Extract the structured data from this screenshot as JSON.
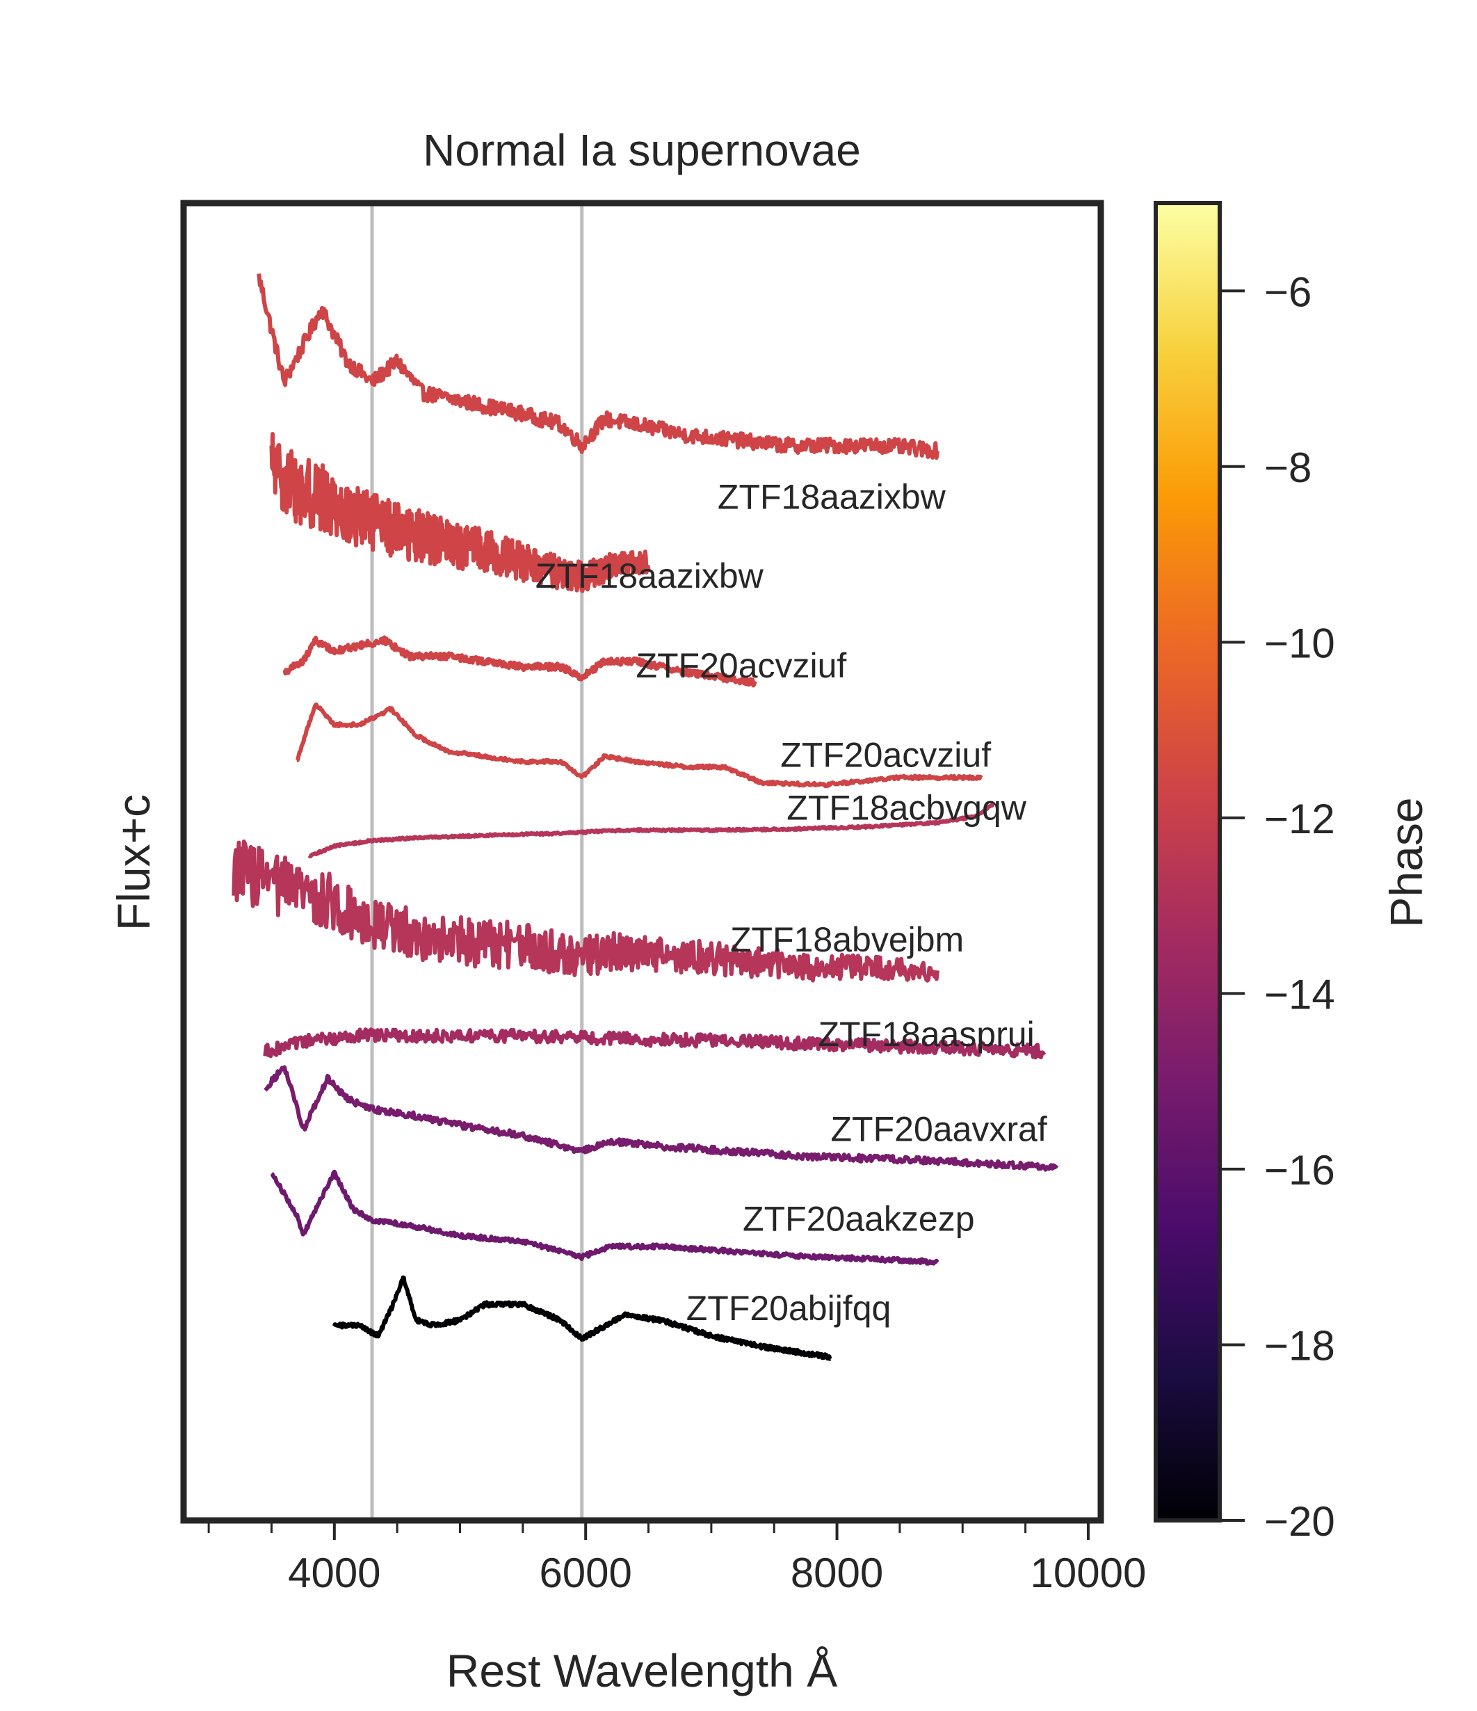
{
  "chart_data": {
    "type": "line",
    "title": "Normal Ia supernovae",
    "xlabel": "Rest Wavelength Å",
    "ylabel": "Flux+c",
    "xlim": [
      2800,
      10100
    ],
    "ylim": [
      -1.0,
      11.5
    ],
    "x_ticks": [
      {
        "value": 4000,
        "label": "4000"
      },
      {
        "value": 6000,
        "label": "6000"
      },
      {
        "value": 8000,
        "label": "8000"
      },
      {
        "value": 10000,
        "label": "10000"
      }
    ],
    "x_minor_ticks": [
      3000,
      3500,
      4500,
      5000,
      5500,
      6500,
      7000,
      7500,
      8500,
      9000,
      9500
    ],
    "vertical_lines": [
      4300,
      5970
    ],
    "grid": false,
    "y_ticks_shown": false,
    "colorbar": {
      "label": "Phase",
      "colormap": "inferno",
      "range": [
        -20,
        -5
      ],
      "ticks": [
        {
          "value": -6,
          "label": "−6"
        },
        {
          "value": -8,
          "label": "−8"
        },
        {
          "value": -10,
          "label": "−10"
        },
        {
          "value": -12,
          "label": "−12"
        },
        {
          "value": -14,
          "label": "−14"
        },
        {
          "value": -16,
          "label": "−16"
        },
        {
          "value": -18,
          "label": "−18"
        },
        {
          "value": -20,
          "label": "−20"
        }
      ],
      "stops": [
        "#000004",
        "#1b0c41",
        "#4a0c6b",
        "#781c6d",
        "#a52c60",
        "#cf4446",
        "#ed6925",
        "#fb9b06",
        "#f7d13d",
        "#fcffa4"
      ]
    },
    "series": [
      {
        "name": "ZTF18aazixbw",
        "color": "#cf4446",
        "offset": 9.6,
        "range": [
          3400,
          8800
        ],
        "noise": 0.07,
        "amplitude": 1.0,
        "label": "ZTF18aazixbw",
        "label_x": 7050,
        "label_y": 8.6,
        "points": [
          [
            3400,
            10.8
          ],
          [
            3600,
            9.8
          ],
          [
            3900,
            10.5
          ],
          [
            4100,
            10.0
          ],
          [
            4300,
            9.8
          ],
          [
            4500,
            10.0
          ],
          [
            4700,
            9.7
          ],
          [
            4900,
            9.65
          ],
          [
            5100,
            9.6
          ],
          [
            5300,
            9.55
          ],
          [
            5500,
            9.5
          ],
          [
            5800,
            9.4
          ],
          [
            5970,
            9.2
          ],
          [
            6150,
            9.45
          ],
          [
            6400,
            9.4
          ],
          [
            6800,
            9.3
          ],
          [
            7200,
            9.25
          ],
          [
            7600,
            9.2
          ],
          [
            8000,
            9.2
          ],
          [
            8400,
            9.2
          ],
          [
            8800,
            9.15
          ]
        ]
      },
      {
        "name": "ZTF18aazixbw",
        "color": "#cf4446",
        "offset": 8.2,
        "range": [
          3500,
          6500
        ],
        "noise": 0.25,
        "amplitude": 1.0,
        "label": "ZTF18aazixbw",
        "label_x": 5600,
        "label_y": 7.85,
        "points": [
          [
            3500,
            9.0
          ],
          [
            3700,
            8.8
          ],
          [
            3900,
            8.7
          ],
          [
            4200,
            8.5
          ],
          [
            4500,
            8.4
          ],
          [
            4800,
            8.3
          ],
          [
            5200,
            8.2
          ],
          [
            5600,
            8.05
          ],
          [
            5970,
            7.95
          ],
          [
            6200,
            8.05
          ],
          [
            6500,
            8.1
          ]
        ]
      },
      {
        "name": "ZTF20acvziuf",
        "color": "#cf4446",
        "offset": 7.1,
        "range": [
          3600,
          7350
        ],
        "noise": 0.03,
        "amplitude": 1.0,
        "label": "ZTF20acvziuf",
        "label_x": 6400,
        "label_y": 7.0,
        "points": [
          [
            3600,
            7.05
          ],
          [
            3750,
            7.15
          ],
          [
            3850,
            7.35
          ],
          [
            4000,
            7.25
          ],
          [
            4200,
            7.3
          ],
          [
            4400,
            7.35
          ],
          [
            4600,
            7.2
          ],
          [
            4900,
            7.2
          ],
          [
            5200,
            7.15
          ],
          [
            5500,
            7.1
          ],
          [
            5800,
            7.1
          ],
          [
            5970,
            7.0
          ],
          [
            6150,
            7.15
          ],
          [
            6400,
            7.15
          ],
          [
            6800,
            7.05
          ],
          [
            7350,
            6.95
          ]
        ]
      },
      {
        "name": "ZTF20acvziuf",
        "color": "#cf4446",
        "offset": 6.1,
        "range": [
          3700,
          9150
        ],
        "noise": 0.015,
        "amplitude": 1.0,
        "label": "ZTF20acvziuf",
        "label_x": 7550,
        "label_y": 6.15,
        "points": [
          [
            3700,
            6.2
          ],
          [
            3850,
            6.75
          ],
          [
            4000,
            6.55
          ],
          [
            4200,
            6.55
          ],
          [
            4450,
            6.7
          ],
          [
            4650,
            6.45
          ],
          [
            4900,
            6.3
          ],
          [
            5200,
            6.25
          ],
          [
            5500,
            6.2
          ],
          [
            5800,
            6.2
          ],
          [
            5970,
            6.05
          ],
          [
            6150,
            6.25
          ],
          [
            6400,
            6.2
          ],
          [
            6800,
            6.15
          ],
          [
            7100,
            6.15
          ],
          [
            7400,
            6.0
          ],
          [
            7900,
            5.98
          ],
          [
            8500,
            6.05
          ],
          [
            9150,
            6.05
          ]
        ]
      },
      {
        "name": "ZTF18acbvgqw",
        "color": "#b6365a",
        "offset": 5.55,
        "range": [
          3800,
          9250
        ],
        "noise": 0.01,
        "amplitude": 1.0,
        "label": "ZTF18acbvgqw",
        "label_x": 7600,
        "label_y": 5.65,
        "points": [
          [
            3800,
            5.3
          ],
          [
            4000,
            5.4
          ],
          [
            4300,
            5.45
          ],
          [
            4700,
            5.48
          ],
          [
            5200,
            5.5
          ],
          [
            5800,
            5.52
          ],
          [
            6300,
            5.55
          ],
          [
            7000,
            5.55
          ],
          [
            7600,
            5.56
          ],
          [
            8200,
            5.58
          ],
          [
            8800,
            5.62
          ],
          [
            9100,
            5.68
          ],
          [
            9250,
            5.8
          ]
        ]
      },
      {
        "name": "ZTF18abvejbm",
        "color": "#b6365a",
        "offset": 4.4,
        "range": [
          3200,
          8800
        ],
        "noise": 0.22,
        "amplitude": 1.0,
        "label": "ZTF18abvejbm",
        "label_x": 7150,
        "label_y": 4.4,
        "points": [
          [
            3200,
            5.2
          ],
          [
            3600,
            5.0
          ],
          [
            4000,
            4.85
          ],
          [
            4500,
            4.6
          ],
          [
            5000,
            4.5
          ],
          [
            5500,
            4.45
          ],
          [
            5970,
            4.35
          ],
          [
            6300,
            4.4
          ],
          [
            6800,
            4.35
          ],
          [
            7300,
            4.3
          ],
          [
            7800,
            4.25
          ],
          [
            8300,
            4.25
          ],
          [
            8800,
            4.2
          ]
        ]
      },
      {
        "name": "ZTF18aasprui",
        "color": "#a52c60",
        "offset": 3.55,
        "range": [
          3450,
          9650
        ],
        "noise": 0.06,
        "amplitude": 1.0,
        "label": "ZTF18aasprui",
        "label_x": 7850,
        "label_y": 3.5,
        "points": [
          [
            3450,
            3.45
          ],
          [
            3800,
            3.55
          ],
          [
            4200,
            3.6
          ],
          [
            4800,
            3.6
          ],
          [
            5400,
            3.6
          ],
          [
            6000,
            3.58
          ],
          [
            6600,
            3.56
          ],
          [
            7200,
            3.55
          ],
          [
            7800,
            3.52
          ],
          [
            8400,
            3.5
          ],
          [
            9000,
            3.48
          ],
          [
            9650,
            3.45
          ]
        ]
      },
      {
        "name": "ZTF20aavxraf",
        "color": "#781c6d",
        "offset": 2.35,
        "range": [
          3450,
          9750
        ],
        "noise": 0.03,
        "amplitude": 1.0,
        "label": "ZTF20aavxraf",
        "label_x": 7950,
        "label_y": 2.6,
        "points": [
          [
            3450,
            3.1
          ],
          [
            3600,
            3.3
          ],
          [
            3700,
            2.95
          ],
          [
            3750,
            2.7
          ],
          [
            3850,
            2.95
          ],
          [
            3950,
            3.2
          ],
          [
            4100,
            3.0
          ],
          [
            4300,
            2.9
          ],
          [
            4600,
            2.85
          ],
          [
            5000,
            2.75
          ],
          [
            5500,
            2.65
          ],
          [
            5970,
            2.5
          ],
          [
            6200,
            2.6
          ],
          [
            6600,
            2.55
          ],
          [
            7200,
            2.5
          ],
          [
            7800,
            2.45
          ],
          [
            8400,
            2.43
          ],
          [
            9000,
            2.4
          ],
          [
            9750,
            2.35
          ]
        ]
      },
      {
        "name": "ZTF20aakzezp",
        "color": "#6d1a6e",
        "offset": 1.35,
        "range": [
          3500,
          8800
        ],
        "noise": 0.02,
        "amplitude": 1.0,
        "label": "ZTF20aakzezp",
        "label_x": 7250,
        "label_y": 1.75,
        "points": [
          [
            3500,
            2.3
          ],
          [
            3600,
            2.1
          ],
          [
            3700,
            1.9
          ],
          [
            3750,
            1.7
          ],
          [
            3850,
            1.95
          ],
          [
            4000,
            2.3
          ],
          [
            4150,
            1.95
          ],
          [
            4300,
            1.85
          ],
          [
            4600,
            1.8
          ],
          [
            5000,
            1.7
          ],
          [
            5500,
            1.65
          ],
          [
            5970,
            1.5
          ],
          [
            6200,
            1.6
          ],
          [
            6600,
            1.6
          ],
          [
            7200,
            1.55
          ],
          [
            7800,
            1.5
          ],
          [
            8300,
            1.48
          ],
          [
            8800,
            1.45
          ]
        ]
      },
      {
        "name": "ZTF20abijfqq",
        "color": "#000004",
        "offset": 0.7,
        "range": [
          4000,
          7950
        ],
        "noise": 0.02,
        "amplitude": 1.0,
        "label": "ZTF20abijfqq",
        "label_x": 6800,
        "label_y": 0.9,
        "points": [
          [
            4000,
            0.85
          ],
          [
            4200,
            0.85
          ],
          [
            4350,
            0.75
          ],
          [
            4450,
            1.0
          ],
          [
            4550,
            1.3
          ],
          [
            4650,
            0.9
          ],
          [
            4800,
            0.85
          ],
          [
            5000,
            0.9
          ],
          [
            5200,
            1.05
          ],
          [
            5500,
            1.05
          ],
          [
            5800,
            0.9
          ],
          [
            5970,
            0.72
          ],
          [
            6300,
            0.95
          ],
          [
            6600,
            0.9
          ],
          [
            7000,
            0.75
          ],
          [
            7400,
            0.65
          ],
          [
            7950,
            0.55
          ]
        ]
      }
    ]
  }
}
